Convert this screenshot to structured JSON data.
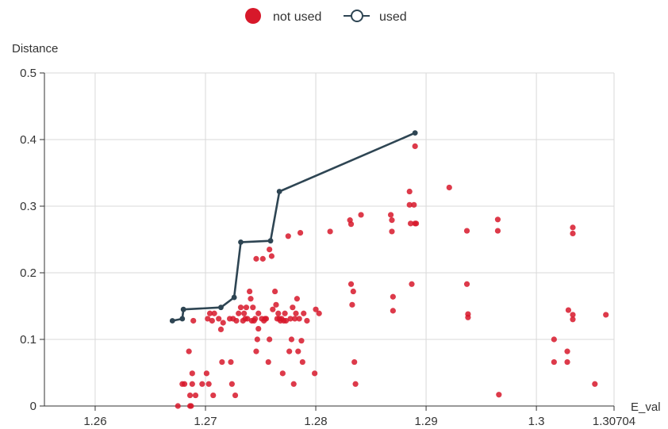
{
  "chart_data": {
    "type": "scatter",
    "xlabel": "E_val",
    "ylabel": "Distance",
    "xlim": [
      1.2554,
      1.30704
    ],
    "ylim": [
      0,
      0.5
    ],
    "x_ticks": [
      "1.26",
      "1.27",
      "1.28",
      "1.29",
      "1.3",
      "1.30704"
    ],
    "y_ticks": [
      "0",
      "0.1",
      "0.2",
      "0.3",
      "0.4",
      "0.5"
    ],
    "grid": true,
    "legend": {
      "position": "top-center"
    },
    "series": [
      {
        "name": "not used",
        "marker": "circle-filled",
        "color": "#d7182a",
        "points": [
          [
            1.2675,
            0
          ],
          [
            1.2686,
            0
          ],
          [
            1.2687,
            0
          ],
          [
            1.2679,
            0.033
          ],
          [
            1.2681,
            0.033
          ],
          [
            1.2686,
            0.016
          ],
          [
            1.2688,
            0.033
          ],
          [
            1.2688,
            0.049
          ],
          [
            1.2691,
            0.016
          ],
          [
            1.2697,
            0.033
          ],
          [
            1.2701,
            0.049
          ],
          [
            1.2703,
            0.033
          ],
          [
            1.2707,
            0.016
          ],
          [
            1.2689,
            0.128
          ],
          [
            1.2685,
            0.082
          ],
          [
            1.2702,
            0.131
          ],
          [
            1.2704,
            0.139
          ],
          [
            1.2706,
            0.128
          ],
          [
            1.2708,
            0.139
          ],
          [
            1.2712,
            0.131
          ],
          [
            1.2716,
            0.125
          ],
          [
            1.2714,
            0.115
          ],
          [
            1.2715,
            0.066
          ],
          [
            1.2723,
            0.066
          ],
          [
            1.2724,
            0.033
          ],
          [
            1.2727,
            0.016
          ],
          [
            1.2722,
            0.131
          ],
          [
            1.2725,
            0.131
          ],
          [
            1.2728,
            0.128
          ],
          [
            1.273,
            0.139
          ],
          [
            1.2732,
            0.148
          ],
          [
            1.2734,
            0.128
          ],
          [
            1.2735,
            0.139
          ],
          [
            1.2736,
            0.131
          ],
          [
            1.2737,
            0.148
          ],
          [
            1.2738,
            0.131
          ],
          [
            1.274,
            0.172
          ],
          [
            1.2741,
            0.161
          ],
          [
            1.2742,
            0.128
          ],
          [
            1.2743,
            0.148
          ],
          [
            1.2744,
            0.128
          ],
          [
            1.2745,
            0.131
          ],
          [
            1.2746,
            0.082
          ],
          [
            1.2747,
            0.1
          ],
          [
            1.2748,
            0.116
          ],
          [
            1.2746,
            0.221
          ],
          [
            1.2748,
            0.139
          ],
          [
            1.2752,
            0.221
          ],
          [
            1.2751,
            0.131
          ],
          [
            1.2753,
            0.128
          ],
          [
            1.2754,
            0.131
          ],
          [
            1.2755,
            0.131
          ],
          [
            1.2757,
            0.066
          ],
          [
            1.2758,
            0.1
          ],
          [
            1.2758,
            0.235
          ],
          [
            1.276,
            0.225
          ],
          [
            1.2761,
            0.145
          ],
          [
            1.2763,
            0.172
          ],
          [
            1.2764,
            0.152
          ],
          [
            1.2765,
            0.131
          ],
          [
            1.2766,
            0.139
          ],
          [
            1.2767,
            0.131
          ],
          [
            1.2768,
            0.128
          ],
          [
            1.2769,
            0.131
          ],
          [
            1.277,
            0.049
          ],
          [
            1.2771,
            0.128
          ],
          [
            1.2772,
            0.139
          ],
          [
            1.2773,
            0.128
          ],
          [
            1.2775,
            0.255
          ],
          [
            1.2776,
            0.082
          ],
          [
            1.2777,
            0.131
          ],
          [
            1.2778,
            0.1
          ],
          [
            1.2779,
            0.148
          ],
          [
            1.278,
            0.033
          ],
          [
            1.2781,
            0.131
          ],
          [
            1.2782,
            0.139
          ],
          [
            1.2783,
            0.161
          ],
          [
            1.2784,
            0.082
          ],
          [
            1.2785,
            0.131
          ],
          [
            1.2786,
            0.26
          ],
          [
            1.2787,
            0.098
          ],
          [
            1.2788,
            0.066
          ],
          [
            1.2789,
            0.139
          ],
          [
            1.2792,
            0.128
          ],
          [
            1.2799,
            0.049
          ],
          [
            1.28,
            0.145
          ],
          [
            1.2803,
            0.139
          ],
          [
            1.2813,
            0.262
          ],
          [
            1.2831,
            0.279
          ],
          [
            1.2832,
            0.273
          ],
          [
            1.2832,
            0.183
          ],
          [
            1.2833,
            0.152
          ],
          [
            1.2834,
            0.172
          ],
          [
            1.2835,
            0.066
          ],
          [
            1.2836,
            0.033
          ],
          [
            1.2841,
            0.287
          ],
          [
            1.2868,
            0.287
          ],
          [
            1.2869,
            0.279
          ],
          [
            1.2869,
            0.262
          ],
          [
            1.287,
            0.164
          ],
          [
            1.287,
            0.143
          ],
          [
            1.2885,
            0.322
          ],
          [
            1.2885,
            0.302
          ],
          [
            1.2886,
            0.274
          ],
          [
            1.2887,
            0.183
          ],
          [
            1.2889,
            0.302
          ],
          [
            1.289,
            0.39
          ],
          [
            1.289,
            0.274
          ],
          [
            1.2891,
            0.274
          ],
          [
            1.2921,
            0.328
          ],
          [
            1.2937,
            0.263
          ],
          [
            1.2937,
            0.183
          ],
          [
            1.2938,
            0.138
          ],
          [
            1.2938,
            0.133
          ],
          [
            1.2965,
            0.28
          ],
          [
            1.2965,
            0.263
          ],
          [
            1.2966,
            0.017
          ],
          [
            1.3016,
            0.1
          ],
          [
            1.3016,
            0.066
          ],
          [
            1.3029,
            0.144
          ],
          [
            1.3028,
            0.082
          ],
          [
            1.3028,
            0.066
          ],
          [
            1.3033,
            0.268
          ],
          [
            1.3033,
            0.259
          ],
          [
            1.3033,
            0.137
          ],
          [
            1.3033,
            0.13
          ],
          [
            1.3053,
            0.033
          ],
          [
            1.3063,
            0.137
          ]
        ]
      },
      {
        "name": "used",
        "marker": "line-circle",
        "color": "#2e4553",
        "points": [
          [
            1.267,
            0.128
          ],
          [
            1.2679,
            0.131
          ],
          [
            1.268,
            0.145
          ],
          [
            1.2714,
            0.148
          ],
          [
            1.2726,
            0.163
          ],
          [
            1.2732,
            0.246
          ],
          [
            1.2759,
            0.248
          ],
          [
            1.2767,
            0.322
          ],
          [
            1.289,
            0.41
          ]
        ]
      }
    ]
  }
}
